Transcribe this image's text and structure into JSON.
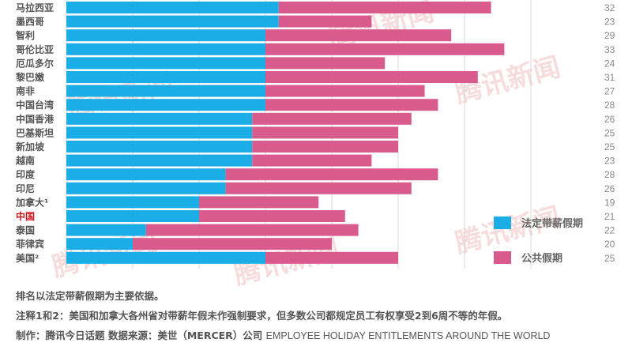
{
  "chart_data": {
    "type": "bar",
    "orientation": "horizontal",
    "stacked": true,
    "categories": [
      "马拉西亚",
      "墨西哥",
      "智利",
      "哥伦比亚",
      "厄瓜多尔",
      "黎巴嫩",
      "南非",
      "中国台湾",
      "中国香港",
      "巴基斯坦",
      "新加坡",
      "越南",
      "印度",
      "印尼",
      "加拿大¹",
      "中国",
      "泰国",
      "菲律宾",
      "美国²"
    ],
    "highlight_category": "中国",
    "series": [
      {
        "name": "法定带薪假期",
        "color": "#1aade6",
        "values": [
          16,
          16,
          15,
          15,
          15,
          15,
          15,
          15,
          14,
          14,
          14,
          14,
          12,
          12,
          10,
          10,
          6,
          5,
          15
        ]
      },
      {
        "name": "公共假期",
        "color": "#d95a8c",
        "values": [
          16,
          7,
          14,
          18,
          9,
          16,
          12,
          13,
          12,
          11,
          11,
          9,
          16,
          14,
          9,
          11,
          16,
          15,
          10
        ]
      }
    ],
    "totals": [
      "32",
      "23",
      "29",
      "33",
      "24",
      "31",
      "27",
      "28",
      "26",
      "25",
      "25",
      "23",
      "28",
      "26",
      "19",
      "21",
      "22",
      "20",
      "25"
    ],
    "xlim": [
      0,
      40
    ],
    "grid": true,
    "legend_position": "bottom-right"
  },
  "footer": {
    "note_ranking": "排名以法定带薪假期为主要依据。",
    "note_1_2": "注释1和2：美国和加拿大各州省对带薪年假未作强制要求，但多数公司都规定员工有权享受2到6周不等的年假。",
    "credit_cn": "制作：腾讯今日话题 数据来源：美世（MERCER）公司",
    "credit_en": "EMPLOYEE HOLIDAY ENTITLEMENTS AROUND THE WORLD"
  },
  "watermark": "腾讯新闻"
}
